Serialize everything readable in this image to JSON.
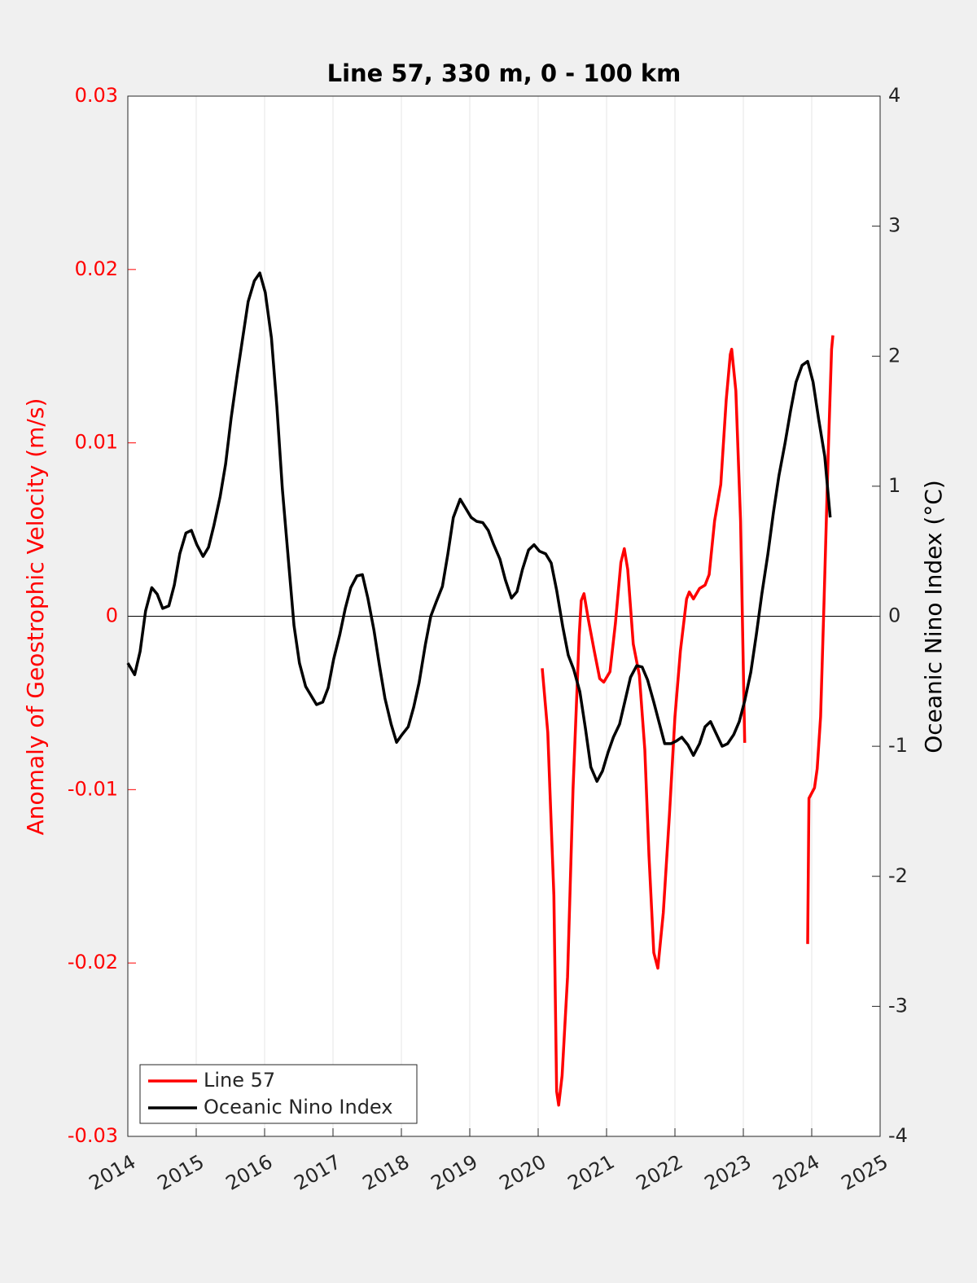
{
  "chart_data": {
    "type": "line",
    "title": "Line 57, 330 m, 0 - 100 km",
    "y_label": "Anomaly of Geostrophic Velocity (m/s)",
    "y2_label": "Oceanic Nino Index (°C)",
    "y_label_color": "#ff0000",
    "xlim": [
      2014,
      2025
    ],
    "xticks": [
      2014,
      2015,
      2016,
      2017,
      2018,
      2019,
      2020,
      2021,
      2022,
      2023,
      2024,
      2025
    ],
    "ylim": [
      -0.03,
      0.03
    ],
    "yticks": [
      -0.03,
      -0.02,
      -0.01,
      0,
      0.01,
      0.02,
      0.03
    ],
    "y2lim": [
      -4,
      4
    ],
    "y2ticks": [
      -4,
      -3,
      -2,
      -1,
      0,
      1,
      2,
      3,
      4
    ],
    "grid": true,
    "legend": "lower left",
    "series": [
      {
        "name": "Line 57",
        "color": "#ff0000",
        "axis": "y",
        "x": [
          2020.06,
          2020.14,
          2020.23,
          2020.27,
          2020.3,
          2020.35,
          2020.43,
          2020.51,
          2020.6,
          2020.63,
          2020.67,
          2020.73,
          2020.82,
          2020.9,
          2020.96,
          2021.05,
          2021.13,
          2021.21,
          2021.26,
          2021.31,
          2021.39,
          2021.48,
          2021.56,
          2021.62,
          2021.69,
          2021.75,
          2021.83,
          2021.92,
          2022.0,
          2022.08,
          2022.17,
          2022.21,
          2022.27,
          2022.36,
          2022.44,
          2022.5,
          2022.58,
          2022.67,
          2022.75,
          2022.81,
          2022.83,
          2022.89,
          2022.96,
          2023.02,
          2023.5,
          2023.94,
          2023.96,
          2024.04,
          2024.08,
          2024.13,
          2024.18,
          2024.24,
          2024.29,
          2024.31
        ],
        "values": [
          -0.003,
          -0.0067,
          -0.0161,
          -0.0274,
          -0.0282,
          -0.0265,
          -0.0208,
          -0.01,
          -0.0011,
          0.0009,
          0.0013,
          -0.0001,
          -0.002,
          -0.0036,
          -0.0038,
          -0.0032,
          -0.0004,
          0.0031,
          0.0039,
          0.0027,
          -0.0016,
          -0.0034,
          -0.0077,
          -0.0138,
          -0.0194,
          -0.0203,
          -0.0171,
          -0.0114,
          -0.0058,
          -0.002,
          0.001,
          0.0014,
          0.001,
          0.0016,
          0.0018,
          0.0024,
          0.0055,
          0.0076,
          0.0125,
          0.0151,
          0.0154,
          0.013,
          0.0055,
          -0.0073,
          null,
          -0.0189,
          -0.0105,
          -0.0099,
          -0.0088,
          -0.0058,
          0.0008,
          0.0093,
          0.0154,
          0.0162
        ]
      },
      {
        "name": "Oceanic Nino Index",
        "color": "#000000",
        "axis": "y2",
        "x": [
          2014.0,
          2014.1,
          2014.18,
          2014.26,
          2014.35,
          2014.43,
          2014.51,
          2014.6,
          2014.68,
          2014.76,
          2014.85,
          2014.93,
          2015.01,
          2015.1,
          2015.18,
          2015.26,
          2015.35,
          2015.43,
          2015.51,
          2015.6,
          2015.68,
          2015.76,
          2015.85,
          2015.93,
          2016.01,
          2016.1,
          2016.18,
          2016.26,
          2016.35,
          2016.43,
          2016.51,
          2016.6,
          2016.68,
          2016.76,
          2016.85,
          2016.93,
          2017.01,
          2017.1,
          2017.18,
          2017.26,
          2017.35,
          2017.43,
          2017.51,
          2017.6,
          2017.68,
          2017.76,
          2017.85,
          2017.93,
          2018.01,
          2018.1,
          2018.18,
          2018.26,
          2018.35,
          2018.43,
          2018.51,
          2018.6,
          2018.68,
          2018.76,
          2018.86,
          2018.94,
          2019.02,
          2019.1,
          2019.19,
          2019.27,
          2019.35,
          2019.44,
          2019.52,
          2019.61,
          2019.69,
          2019.77,
          2019.86,
          2019.94,
          2020.02,
          2020.11,
          2020.19,
          2020.27,
          2020.36,
          2020.44,
          2020.52,
          2020.61,
          2020.69,
          2020.77,
          2020.86,
          2020.94,
          2021.02,
          2021.1,
          2021.19,
          2021.27,
          2021.35,
          2021.44,
          2021.52,
          2021.6,
          2021.69,
          2021.77,
          2021.85,
          2021.94,
          2022.02,
          2022.1,
          2022.19,
          2022.27,
          2022.36,
          2022.44,
          2022.52,
          2022.61,
          2022.69,
          2022.77,
          2022.86,
          2022.94,
          2023.02,
          2023.11,
          2023.19,
          2023.27,
          2023.36,
          2023.44,
          2023.52,
          2023.61,
          2023.69,
          2023.77,
          2023.86,
          2023.94,
          2024.02,
          2024.1,
          2024.19,
          2024.27
        ],
        "values": [
          -0.36,
          -0.45,
          -0.27,
          0.04,
          0.22,
          0.17,
          0.06,
          0.08,
          0.24,
          0.48,
          0.64,
          0.66,
          0.55,
          0.46,
          0.53,
          0.7,
          0.92,
          1.17,
          1.52,
          1.86,
          2.14,
          2.42,
          2.58,
          2.64,
          2.49,
          2.14,
          1.61,
          0.98,
          0.42,
          -0.07,
          -0.36,
          -0.54,
          -0.61,
          -0.68,
          -0.66,
          -0.55,
          -0.33,
          -0.14,
          0.06,
          0.22,
          0.31,
          0.32,
          0.14,
          -0.11,
          -0.38,
          -0.63,
          -0.83,
          -0.97,
          -0.91,
          -0.85,
          -0.7,
          -0.51,
          -0.22,
          0.0,
          0.11,
          0.23,
          0.48,
          0.76,
          0.9,
          0.83,
          0.76,
          0.73,
          0.72,
          0.66,
          0.55,
          0.44,
          0.28,
          0.14,
          0.19,
          0.36,
          0.51,
          0.55,
          0.5,
          0.48,
          0.41,
          0.2,
          -0.08,
          -0.3,
          -0.41,
          -0.58,
          -0.86,
          -1.16,
          -1.27,
          -1.19,
          -1.05,
          -0.93,
          -0.83,
          -0.65,
          -0.47,
          -0.38,
          -0.39,
          -0.49,
          -0.66,
          -0.82,
          -0.98,
          -0.98,
          -0.96,
          -0.93,
          -0.99,
          -1.07,
          -0.98,
          -0.85,
          -0.81,
          -0.91,
          -1.0,
          -0.98,
          -0.91,
          -0.81,
          -0.65,
          -0.43,
          -0.14,
          0.17,
          0.48,
          0.8,
          1.08,
          1.33,
          1.58,
          1.8,
          1.93,
          1.96,
          1.8,
          1.52,
          1.23,
          0.76
        ]
      }
    ]
  }
}
